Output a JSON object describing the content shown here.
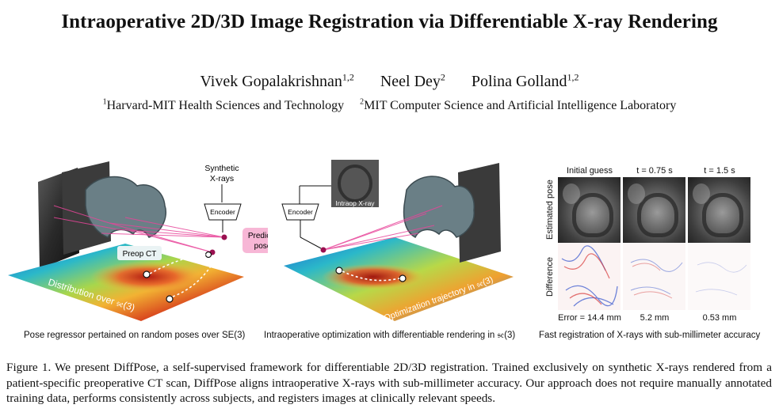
{
  "title": "Intraoperative 2D/3D Image Registration via Differentiable X-ray Rendering",
  "authors": [
    {
      "name": "Vivek Gopalakrishnan",
      "affil": "1,2"
    },
    {
      "name": "Neel Dey",
      "affil": "2"
    },
    {
      "name": "Polina Golland",
      "affil": "1,2"
    }
  ],
  "affiliations": [
    {
      "num": "1",
      "name": "Harvard-MIT Health Sciences and Technology"
    },
    {
      "num": "2",
      "name": "MIT Computer Science and Artificial Intelligence Laboratory"
    }
  ],
  "panel_a": {
    "synthetic_label_1": "Synthetic",
    "synthetic_label_2": "X-rays",
    "encoder": "Encoder",
    "predicted_1": "Predicted",
    "predicted_2": "poses",
    "preop": "Preop CT",
    "distribution": "Distribution over 𝔰𝔢(3)",
    "subcaption": "Pose regressor pertained on random poses over SE(3)",
    "colors": {
      "accent": "#e8459a",
      "tag_bg": "#f7b7d6"
    }
  },
  "panel_b": {
    "encoder": "Encoder",
    "intraop": "Intraop X-ray",
    "trajectory": "Optimization trajectory in 𝔰𝔢(3)",
    "subcaption": "Intraoperative optimization with differentiable rendering in 𝔰𝔢(3)"
  },
  "panel_c": {
    "columns": [
      "Initial guess",
      "t = 0.75 s",
      "t = 1.5 s"
    ],
    "rows": [
      "Estimated pose",
      "Difference"
    ],
    "errors": [
      "Error = 14.4 mm",
      "5.2 mm",
      "0.53 mm"
    ],
    "subcaption": "Fast registration of X-rays with sub-millimeter accuracy"
  },
  "caption": "Figure 1. We present DiffPose, a self-supervised framework for differentiable 2D/3D registration. Trained exclusively on synthetic X-rays rendered from a patient-specific preoperative CT scan, DiffPose aligns intraoperative X-rays with sub-millimeter accuracy. Our approach does not require manually annotated training data, performs consistently across subjects, and registers images at clinically relevant speeds."
}
